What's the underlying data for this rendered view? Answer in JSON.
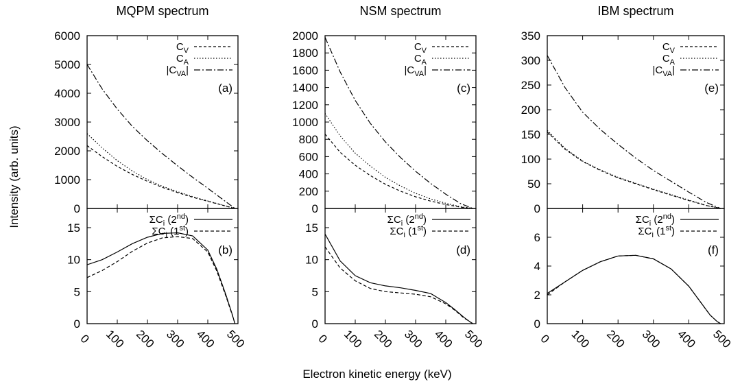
{
  "figure": {
    "xlabel": "Electron kinetic energy (keV)",
    "ylabel": "Intensity (arb. units)",
    "xticks": [
      "0",
      "100",
      "200",
      "300",
      "400",
      "500"
    ]
  },
  "chart_data": [
    {
      "panel": "a",
      "type": "line",
      "column_title": "MQPM spectrum",
      "label": "(a)",
      "xlim": [
        0,
        500
      ],
      "ylim": [
        0,
        6000
      ],
      "yticks": [
        "0",
        "1000",
        "2000",
        "3000",
        "4000",
        "5000",
        "6000"
      ],
      "x": [
        0,
        50,
        100,
        150,
        200,
        250,
        300,
        350,
        400,
        450,
        490
      ],
      "series": [
        {
          "name": "C_V",
          "name_parts": [
            "C",
            "V"
          ],
          "dash": "4,3",
          "values": [
            2180,
            1800,
            1460,
            1180,
            940,
            730,
            550,
            390,
            250,
            110,
            0
          ]
        },
        {
          "name": "C_A",
          "name_parts": [
            "C",
            "A"
          ],
          "dash": "1.5,2.5",
          "values": [
            2600,
            2100,
            1660,
            1300,
            1000,
            770,
            580,
            410,
            260,
            115,
            0
          ]
        },
        {
          "name": "|C_VA|",
          "name_parts": [
            "|C",
            "VA",
            "|"
          ],
          "dash": "9,3,2,3",
          "values": [
            5000,
            4150,
            3450,
            2850,
            2350,
            1900,
            1480,
            1080,
            700,
            310,
            0
          ]
        }
      ]
    },
    {
      "panel": "b",
      "type": "line",
      "label": "(b)",
      "xlim": [
        0,
        500
      ],
      "ylim": [
        0,
        18
      ],
      "yticks": [
        "0",
        "5",
        "10",
        "15"
      ],
      "x": [
        0,
        50,
        100,
        150,
        200,
        250,
        300,
        350,
        400,
        430,
        460,
        480,
        490
      ],
      "series": [
        {
          "name": "ΣC_i (2nd)",
          "name_parts": [
            "ΣC",
            "i",
            " (2",
            "nd",
            ")"
          ],
          "dash": "",
          "values": [
            9.2,
            10.0,
            11.2,
            12.5,
            13.5,
            14.1,
            14.2,
            13.7,
            11.5,
            8.5,
            4.5,
            1.6,
            0
          ]
        },
        {
          "name": "ΣC_i (1st)",
          "name_parts": [
            "ΣC",
            "i",
            " (1",
            "st",
            ")"
          ],
          "dash": "5,3",
          "values": [
            7.2,
            8.3,
            9.7,
            11.3,
            12.6,
            13.4,
            13.6,
            13.3,
            11.2,
            8.2,
            4.3,
            1.5,
            0
          ]
        }
      ]
    },
    {
      "panel": "c",
      "type": "line",
      "column_title": "NSM spectrum",
      "label": "(c)",
      "xlim": [
        0,
        500
      ],
      "ylim": [
        0,
        2000
      ],
      "yticks": [
        "0",
        "200",
        "400",
        "600",
        "800",
        "1000",
        "1200",
        "1400",
        "1600",
        "1800",
        "2000"
      ],
      "x": [
        0,
        50,
        100,
        150,
        200,
        250,
        300,
        350,
        400,
        450,
        490
      ],
      "series": [
        {
          "name": "C_V",
          "name_parts": [
            "C",
            "V"
          ],
          "dash": "4,3",
          "values": [
            860,
            650,
            500,
            380,
            280,
            200,
            135,
            85,
            45,
            15,
            0
          ]
        },
        {
          "name": "C_A",
          "name_parts": [
            "C",
            "A"
          ],
          "dash": "1.5,2.5",
          "values": [
            1100,
            840,
            640,
            490,
            360,
            260,
            175,
            110,
            60,
            20,
            0
          ]
        },
        {
          "name": "|C_VA|",
          "name_parts": [
            "|C",
            "VA",
            "|"
          ],
          "dash": "9,3,2,3",
          "values": [
            1980,
            1580,
            1250,
            985,
            770,
            590,
            430,
            290,
            165,
            55,
            0
          ]
        }
      ]
    },
    {
      "panel": "d",
      "type": "line",
      "label": "(d)",
      "xlim": [
        0,
        500
      ],
      "ylim": [
        0,
        18
      ],
      "yticks": [
        "0",
        "5",
        "10",
        "15"
      ],
      "x": [
        0,
        50,
        100,
        150,
        200,
        250,
        300,
        350,
        400,
        430,
        460,
        480,
        490
      ],
      "series": [
        {
          "name": "ΣC_i (2nd)",
          "name_parts": [
            "ΣC",
            "i",
            " (2",
            "nd",
            ")"
          ],
          "dash": "",
          "values": [
            14.0,
            9.8,
            7.5,
            6.4,
            5.9,
            5.6,
            5.2,
            4.7,
            3.3,
            2.2,
            1.0,
            0.3,
            0
          ]
        },
        {
          "name": "ΣC_i (1st)",
          "name_parts": [
            "ΣC",
            "i",
            " (1",
            "st",
            ")"
          ],
          "dash": "5,3",
          "values": [
            12.0,
            8.7,
            6.7,
            5.5,
            5.0,
            4.8,
            4.6,
            4.2,
            3.1,
            2.1,
            0.9,
            0.3,
            0
          ]
        }
      ]
    },
    {
      "panel": "e",
      "type": "line",
      "column_title": "IBM spectrum",
      "label": "(e)",
      "xlim": [
        0,
        500
      ],
      "ylim": [
        0,
        350
      ],
      "yticks": [
        "0",
        "50",
        "100",
        "150",
        "200",
        "250",
        "300",
        "350"
      ],
      "x": [
        0,
        50,
        100,
        150,
        200,
        250,
        300,
        350,
        400,
        450,
        490
      ],
      "series": [
        {
          "name": "C_V",
          "name_parts": [
            "C",
            "V"
          ],
          "dash": "4,3",
          "values": [
            155,
            120,
            95,
            77,
            62,
            50,
            38,
            27,
            16,
            6,
            0
          ]
        },
        {
          "name": "C_A",
          "name_parts": [
            "C",
            "A"
          ],
          "dash": "1.5,2.5",
          "values": [
            158,
            122,
            96,
            78,
            63,
            51,
            39,
            28,
            17,
            6,
            0
          ]
        },
        {
          "name": "|C_VA|",
          "name_parts": [
            "|C",
            "VA",
            "|"
          ],
          "dash": "9,3,2,3",
          "values": [
            310,
            245,
            195,
            160,
            130,
            102,
            77,
            55,
            33,
            12,
            0
          ]
        }
      ]
    },
    {
      "panel": "f",
      "type": "line",
      "label": "(f)",
      "xlim": [
        0,
        500
      ],
      "ylim": [
        0,
        8
      ],
      "yticks": [
        "0",
        "2",
        "4",
        "6"
      ],
      "x": [
        0,
        50,
        100,
        150,
        200,
        250,
        300,
        350,
        400,
        430,
        460,
        480,
        490
      ],
      "series": [
        {
          "name": "ΣC_i (2nd)",
          "name_parts": [
            "ΣC",
            "i",
            " (2",
            "nd",
            ")"
          ],
          "dash": "",
          "values": [
            2.1,
            2.9,
            3.7,
            4.3,
            4.7,
            4.75,
            4.5,
            3.8,
            2.6,
            1.6,
            0.6,
            0.15,
            0
          ]
        },
        {
          "name": "ΣC_i (1st)",
          "name_parts": [
            "ΣC",
            "i",
            " (1",
            "st",
            ")"
          ],
          "dash": "5,3",
          "values": [
            2.0,
            2.9,
            3.7,
            4.3,
            4.7,
            4.75,
            4.5,
            3.8,
            2.6,
            1.6,
            0.6,
            0.15,
            0
          ]
        }
      ]
    }
  ]
}
